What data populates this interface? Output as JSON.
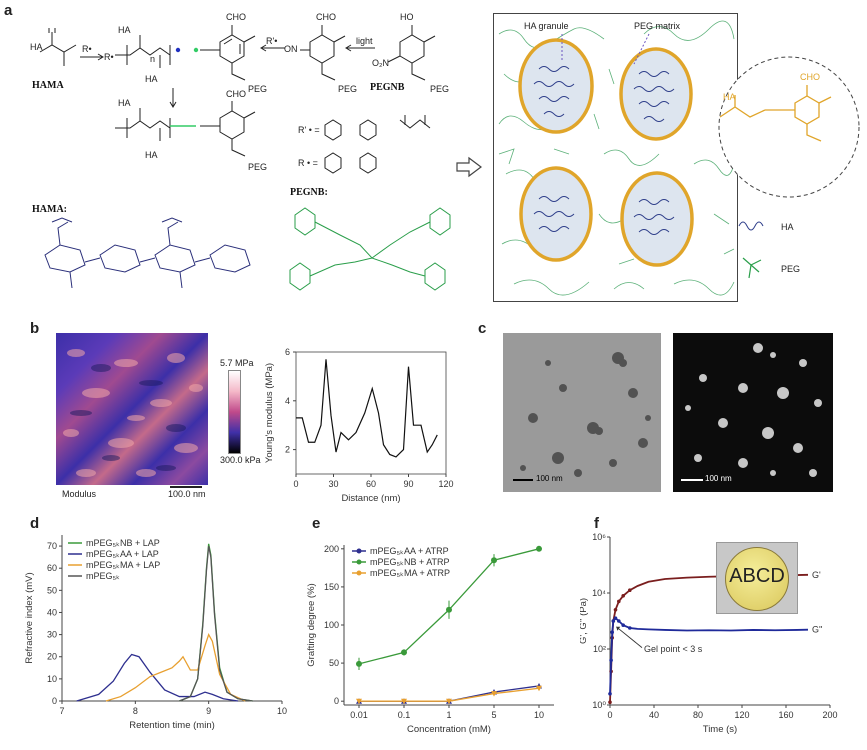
{
  "panels": {
    "a": "a",
    "b": "b",
    "c": "c",
    "d": "d",
    "e": "e",
    "f": "f"
  },
  "panel_a": {
    "hama": "HAMA",
    "pegnb": "PEGNB",
    "hama_struct": "HAMA:",
    "pegnb_struct": "PEGNB:",
    "light": "light",
    "radical": "R•",
    "radical2": "R'•",
    "peg": "PEG",
    "cho": "CHO",
    "ho": "HO",
    "ha": "HA",
    "r_prime_eq": "R' • =",
    "r_eq": "R • =",
    "n": "n",
    "no2": "O₂N",
    "on": "ON",
    "ha_granule": "HA granule",
    "peg_matrix": "PEG matrix",
    "legend_ha": "HA",
    "legend_peg": "PEG"
  },
  "panel_b": {
    "scale_top": "5.7 MPa",
    "scale_bottom": "300.0 kPa",
    "modulus": "Modulus",
    "scalebar": "100.0 nm"
  },
  "panel_c": {
    "scale_left": "100 nm",
    "scale_right": "100 nm"
  },
  "panel_f_inset": "ABCD",
  "panel_f_annotation": "Gel point < 3 s",
  "chart_data": [
    {
      "id": "b",
      "type": "line",
      "xlabel": "Distance (nm)",
      "ylabel": "Young's modulus (MPa)",
      "xlim": [
        0,
        120
      ],
      "ylim": [
        1,
        6
      ],
      "xticks": [
        0,
        30,
        60,
        90,
        120
      ],
      "yticks": [
        2,
        4,
        6
      ],
      "x": [
        0,
        5,
        10,
        15,
        20,
        24,
        28,
        32,
        36,
        42,
        48,
        55,
        61,
        66,
        70,
        75,
        80,
        86,
        90,
        94,
        100,
        105,
        109,
        113
      ],
      "y": [
        3.3,
        3.3,
        2.3,
        2.3,
        3.0,
        5.7,
        3.4,
        1.9,
        2.7,
        2.4,
        2.7,
        3.5,
        4.5,
        3.5,
        2.2,
        1.8,
        1.7,
        2.0,
        5.4,
        3.0,
        3.0,
        1.9,
        2.2,
        2.6
      ]
    },
    {
      "id": "d",
      "type": "line",
      "xlabel": "Retention time (min)",
      "ylabel": "Refractive index (mV)",
      "xlim": [
        7,
        10
      ],
      "ylim": [
        0,
        75
      ],
      "xticks": [
        7,
        8,
        9,
        10
      ],
      "yticks": [
        0,
        10,
        20,
        30,
        40,
        50,
        60,
        70
      ],
      "legend": [
        "mPEG₅ₖNB + LAP",
        "mPEG₅ₖAA + LAP",
        "mPEG₅ₖMA + LAP",
        "mPEG₅ₖ"
      ],
      "legend_position": "top-left",
      "series": [
        {
          "name": "mPEG₅ₖNB + LAP",
          "color": "#3a9a3a",
          "x": [
            8.6,
            8.75,
            8.85,
            8.92,
            8.97,
            9.0,
            9.03,
            9.08,
            9.15,
            9.25,
            9.4,
            9.6
          ],
          "y": [
            0,
            2,
            10,
            35,
            60,
            71,
            66,
            40,
            15,
            4,
            1,
            0
          ]
        },
        {
          "name": "mPEG₅ₖAA + LAP",
          "color": "#2e2f8f",
          "x": [
            7.2,
            7.5,
            7.7,
            7.85,
            7.95,
            8.05,
            8.2,
            8.4,
            8.6,
            8.8,
            8.95,
            9.05,
            9.2,
            9.4
          ],
          "y": [
            0,
            3,
            9,
            17,
            21,
            20,
            13,
            5,
            2,
            2,
            4,
            3,
            1,
            0
          ]
        },
        {
          "name": "mPEG₅ₖMA + LAP",
          "color": "#e8a030",
          "x": [
            7.6,
            7.8,
            8.0,
            8.2,
            8.35,
            8.5,
            8.6,
            8.65,
            8.75,
            8.85,
            8.95,
            9.0,
            9.05,
            9.15,
            9.3,
            9.5
          ],
          "y": [
            0,
            2,
            6,
            11,
            13,
            15,
            18,
            20,
            14,
            14,
            25,
            30,
            27,
            12,
            3,
            0
          ]
        },
        {
          "name": "mPEG₅ₖ",
          "color": "#555555",
          "x": [
            8.6,
            8.75,
            8.85,
            8.92,
            8.97,
            9.0,
            9.03,
            9.08,
            9.15,
            9.25,
            9.4,
            9.6
          ],
          "y": [
            0,
            2,
            10,
            34,
            59,
            70,
            65,
            39,
            14,
            4,
            1,
            0
          ]
        }
      ]
    },
    {
      "id": "e",
      "type": "line",
      "xlabel": "Concentration (mM)",
      "ylabel": "Grafting degree (%)",
      "xlim": [
        0,
        4
      ],
      "ylim": [
        -5,
        205
      ],
      "xtick_labels": [
        "0.01",
        "0.1",
        "1",
        "5",
        "10"
      ],
      "yticks": [
        0,
        50,
        100,
        150,
        200
      ],
      "legend": [
        "mPEG₅ₖAA + ATRP",
        "mPEG₅ₖNB + ATRP",
        "mPEG₅ₖMA + ATRP"
      ],
      "legend_position": "top-left",
      "series": [
        {
          "name": "mPEG₅ₖAA + ATRP",
          "color": "#2e2f8f",
          "y": [
            0,
            0,
            0,
            12,
            20
          ]
        },
        {
          "name": "mPEG₅ₖNB + ATRP",
          "color": "#3a9a3a",
          "y": [
            49,
            64,
            120,
            185,
            200
          ],
          "err": [
            8,
            4,
            12,
            8,
            3
          ]
        },
        {
          "name": "mPEG₅ₖMA + ATRP",
          "color": "#e8a030",
          "y": [
            0,
            0,
            0,
            10,
            17
          ]
        }
      ]
    },
    {
      "id": "f",
      "type": "line",
      "xlabel": "Time (s)",
      "ylabel": "G', G'' (Pa)",
      "scale": "log",
      "xlim": [
        0,
        200
      ],
      "ylim_log10": [
        0,
        6
      ],
      "xticks": [
        0,
        40,
        80,
        120,
        160,
        200
      ],
      "ytick_labels": [
        "10⁰",
        "10²",
        "10⁴",
        "10⁶"
      ],
      "series": [
        {
          "name": "G'",
          "color": "#7a1e1e",
          "x": [
            0,
            1,
            2,
            3,
            5,
            8,
            12,
            18,
            25,
            35,
            50,
            70,
            90,
            110,
            130,
            150,
            170,
            180
          ],
          "y": [
            0.1,
            1.2,
            2.4,
            3.0,
            3.4,
            3.7,
            3.9,
            4.1,
            4.25,
            4.4,
            4.5,
            4.55,
            4.58,
            4.6,
            4.62,
            4.63,
            4.64,
            4.65
          ]
        },
        {
          "name": "G''",
          "color": "#1f2a9a",
          "x": [
            0,
            1,
            2,
            3,
            5,
            8,
            12,
            18,
            25,
            35,
            50,
            70,
            90,
            110,
            130,
            150,
            170,
            180
          ],
          "y": [
            0.4,
            1.6,
            2.6,
            3.0,
            3.1,
            3.0,
            2.85,
            2.75,
            2.72,
            2.7,
            2.68,
            2.66,
            2.67,
            2.66,
            2.68,
            2.67,
            2.68,
            2.69
          ]
        }
      ]
    }
  ]
}
